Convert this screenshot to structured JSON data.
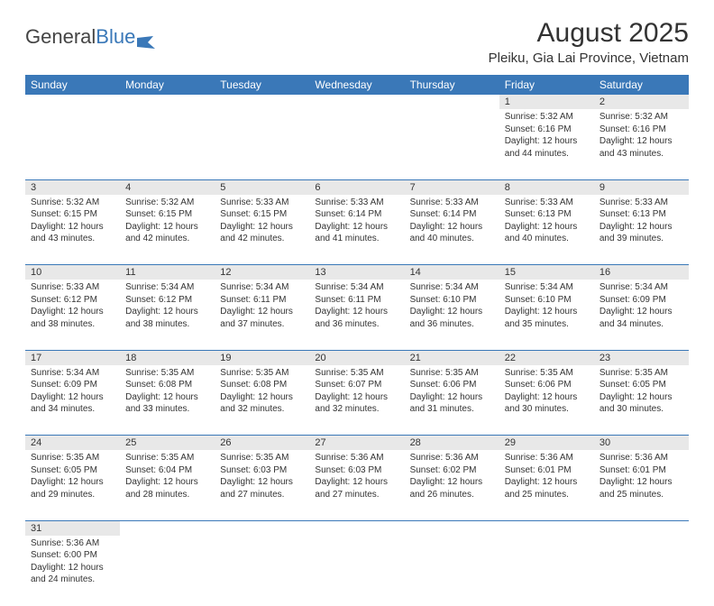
{
  "logo": {
    "text1": "General",
    "text2": "Blue"
  },
  "title": "August 2025",
  "location": "Pleiku, Gia Lai Province, Vietnam",
  "colors": {
    "header_bg": "#3a78b8",
    "daynum_bg": "#e8e8e8",
    "border": "#3a78b8"
  },
  "weekdays": [
    "Sunday",
    "Monday",
    "Tuesday",
    "Wednesday",
    "Thursday",
    "Friday",
    "Saturday"
  ],
  "weeks": [
    [
      null,
      null,
      null,
      null,
      null,
      {
        "n": "1",
        "sr": "5:32 AM",
        "ss": "6:16 PM",
        "dl": "12 hours and 44 minutes."
      },
      {
        "n": "2",
        "sr": "5:32 AM",
        "ss": "6:16 PM",
        "dl": "12 hours and 43 minutes."
      }
    ],
    [
      {
        "n": "3",
        "sr": "5:32 AM",
        "ss": "6:15 PM",
        "dl": "12 hours and 43 minutes."
      },
      {
        "n": "4",
        "sr": "5:32 AM",
        "ss": "6:15 PM",
        "dl": "12 hours and 42 minutes."
      },
      {
        "n": "5",
        "sr": "5:33 AM",
        "ss": "6:15 PM",
        "dl": "12 hours and 42 minutes."
      },
      {
        "n": "6",
        "sr": "5:33 AM",
        "ss": "6:14 PM",
        "dl": "12 hours and 41 minutes."
      },
      {
        "n": "7",
        "sr": "5:33 AM",
        "ss": "6:14 PM",
        "dl": "12 hours and 40 minutes."
      },
      {
        "n": "8",
        "sr": "5:33 AM",
        "ss": "6:13 PM",
        "dl": "12 hours and 40 minutes."
      },
      {
        "n": "9",
        "sr": "5:33 AM",
        "ss": "6:13 PM",
        "dl": "12 hours and 39 minutes."
      }
    ],
    [
      {
        "n": "10",
        "sr": "5:33 AM",
        "ss": "6:12 PM",
        "dl": "12 hours and 38 minutes."
      },
      {
        "n": "11",
        "sr": "5:34 AM",
        "ss": "6:12 PM",
        "dl": "12 hours and 38 minutes."
      },
      {
        "n": "12",
        "sr": "5:34 AM",
        "ss": "6:11 PM",
        "dl": "12 hours and 37 minutes."
      },
      {
        "n": "13",
        "sr": "5:34 AM",
        "ss": "6:11 PM",
        "dl": "12 hours and 36 minutes."
      },
      {
        "n": "14",
        "sr": "5:34 AM",
        "ss": "6:10 PM",
        "dl": "12 hours and 36 minutes."
      },
      {
        "n": "15",
        "sr": "5:34 AM",
        "ss": "6:10 PM",
        "dl": "12 hours and 35 minutes."
      },
      {
        "n": "16",
        "sr": "5:34 AM",
        "ss": "6:09 PM",
        "dl": "12 hours and 34 minutes."
      }
    ],
    [
      {
        "n": "17",
        "sr": "5:34 AM",
        "ss": "6:09 PM",
        "dl": "12 hours and 34 minutes."
      },
      {
        "n": "18",
        "sr": "5:35 AM",
        "ss": "6:08 PM",
        "dl": "12 hours and 33 minutes."
      },
      {
        "n": "19",
        "sr": "5:35 AM",
        "ss": "6:08 PM",
        "dl": "12 hours and 32 minutes."
      },
      {
        "n": "20",
        "sr": "5:35 AM",
        "ss": "6:07 PM",
        "dl": "12 hours and 32 minutes."
      },
      {
        "n": "21",
        "sr": "5:35 AM",
        "ss": "6:06 PM",
        "dl": "12 hours and 31 minutes."
      },
      {
        "n": "22",
        "sr": "5:35 AM",
        "ss": "6:06 PM",
        "dl": "12 hours and 30 minutes."
      },
      {
        "n": "23",
        "sr": "5:35 AM",
        "ss": "6:05 PM",
        "dl": "12 hours and 30 minutes."
      }
    ],
    [
      {
        "n": "24",
        "sr": "5:35 AM",
        "ss": "6:05 PM",
        "dl": "12 hours and 29 minutes."
      },
      {
        "n": "25",
        "sr": "5:35 AM",
        "ss": "6:04 PM",
        "dl": "12 hours and 28 minutes."
      },
      {
        "n": "26",
        "sr": "5:35 AM",
        "ss": "6:03 PM",
        "dl": "12 hours and 27 minutes."
      },
      {
        "n": "27",
        "sr": "5:36 AM",
        "ss": "6:03 PM",
        "dl": "12 hours and 27 minutes."
      },
      {
        "n": "28",
        "sr": "5:36 AM",
        "ss": "6:02 PM",
        "dl": "12 hours and 26 minutes."
      },
      {
        "n": "29",
        "sr": "5:36 AM",
        "ss": "6:01 PM",
        "dl": "12 hours and 25 minutes."
      },
      {
        "n": "30",
        "sr": "5:36 AM",
        "ss": "6:01 PM",
        "dl": "12 hours and 25 minutes."
      }
    ],
    [
      {
        "n": "31",
        "sr": "5:36 AM",
        "ss": "6:00 PM",
        "dl": "12 hours and 24 minutes."
      },
      null,
      null,
      null,
      null,
      null,
      null
    ]
  ],
  "labels": {
    "sunrise": "Sunrise: ",
    "sunset": "Sunset: ",
    "daylight": "Daylight: "
  }
}
